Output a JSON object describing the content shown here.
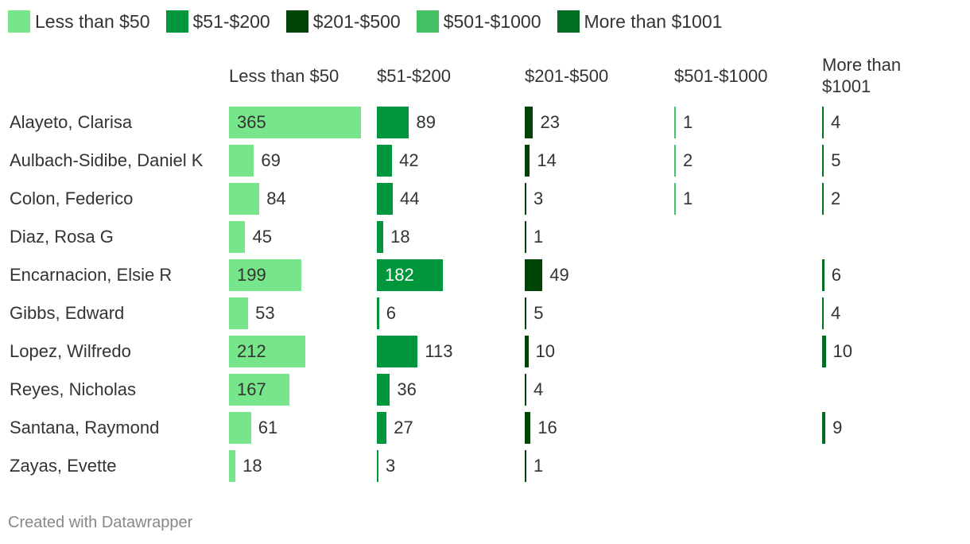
{
  "chart_data": {
    "type": "bar",
    "legend": [
      "Less than $50",
      "$51-$200",
      "$201-$500",
      "$501-$1000",
      "More than $1001"
    ],
    "colors": [
      "#77e68a",
      "#00963c",
      "#004408",
      "#44c162",
      "#006e21"
    ],
    "columns": [
      "Less than $50",
      "$51-$200",
      "$201-$500",
      "$501-$1000",
      "More than $1001"
    ],
    "categories": [
      "Alayeto, Clarisa",
      "Aulbach-Sidibe, Daniel K",
      "Colon, Federico",
      "Diaz, Rosa G",
      "Encarnacion, Elsie R",
      "Gibbs, Edward",
      "Lopez, Wilfredo",
      "Reyes, Nicholas",
      "Santana, Raymond",
      "Zayas, Evette"
    ],
    "series": [
      {
        "name": "Less than $50",
        "values": [
          365,
          69,
          84,
          45,
          199,
          53,
          212,
          167,
          61,
          18
        ]
      },
      {
        "name": "$51-$200",
        "values": [
          89,
          42,
          44,
          18,
          182,
          6,
          113,
          36,
          27,
          3
        ]
      },
      {
        "name": "$201-$500",
        "values": [
          23,
          14,
          3,
          1,
          49,
          5,
          10,
          4,
          16,
          1
        ]
      },
      {
        "name": "$501-$1000",
        "values": [
          1,
          2,
          1,
          null,
          null,
          null,
          null,
          null,
          null,
          null
        ]
      },
      {
        "name": "More than $1001",
        "values": [
          4,
          5,
          2,
          null,
          6,
          4,
          10,
          null,
          9,
          null
        ]
      }
    ],
    "xlim": [
      0,
      365
    ]
  },
  "footer": "Created with Datawrapper"
}
